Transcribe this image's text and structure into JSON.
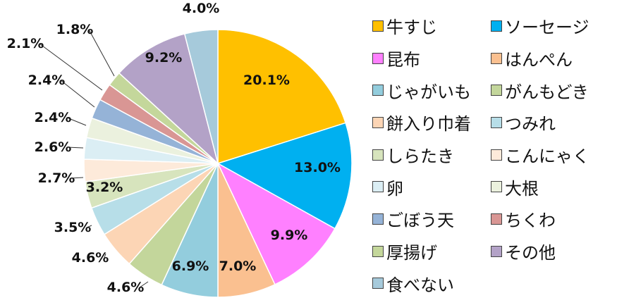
{
  "chart_data": {
    "type": "pie",
    "title": "",
    "start_angle_deg": 0,
    "direction": "clockwise",
    "slices": [
      {
        "label": "牛すじ",
        "value": 20.1,
        "value_label": "20.1%",
        "color": "#FFC000"
      },
      {
        "label": "ソーセージ",
        "value": 13.0,
        "value_label": "13.0%",
        "color": "#00B0F0"
      },
      {
        "label": "昆布",
        "value": 9.9,
        "value_label": "9.9%",
        "color": "#FF80FF"
      },
      {
        "label": "はんぺん",
        "value": 7.0,
        "value_label": "7.0%",
        "color": "#FAC090"
      },
      {
        "label": "じゃがいも",
        "value": 6.9,
        "value_label": "6.9%",
        "color": "#93CDDD"
      },
      {
        "label": "がんもどき",
        "value": 4.6,
        "value_label": "4.6%",
        "color": "#C3D69B"
      },
      {
        "label": "餅入り巾着",
        "value": 4.6,
        "value_label": "4.6%",
        "color": "#FCD5B5"
      },
      {
        "label": "つみれ",
        "value": 3.5,
        "value_label": "3.5%",
        "color": "#B7DEE8"
      },
      {
        "label": "しらたき",
        "value": 3.2,
        "value_label": "3.2%",
        "color": "#D7E4BD"
      },
      {
        "label": "こんにゃく",
        "value": 2.7,
        "value_label": "2.7%",
        "color": "#FDEADA"
      },
      {
        "label": "卵",
        "value": 2.6,
        "value_label": "2.6%",
        "color": "#DBEEF4"
      },
      {
        "label": "大根",
        "value": 2.4,
        "value_label": "2.4%",
        "color": "#EBF1DE"
      },
      {
        "label": "ごぼう天",
        "value": 2.4,
        "value_label": "2.4%",
        "color": "#95B3D7"
      },
      {
        "label": "ちくわ",
        "value": 2.1,
        "value_label": "2.1%",
        "color": "#D99694"
      },
      {
        "label": "厚揚げ",
        "value": 1.8,
        "value_label": "1.8%",
        "color": "#C4D79B"
      },
      {
        "label": "その他",
        "value": 9.2,
        "value_label": "9.2%",
        "color": "#B3A2C7"
      },
      {
        "label": "食べない",
        "value": 4.0,
        "value_label": "4.0%",
        "color": "#A6CADB"
      }
    ],
    "legend": {
      "position": "right",
      "columns": 2,
      "items": [
        "牛すじ",
        "ソーセージ",
        "昆布",
        "はんぺん",
        "じゃがいも",
        "がんもどき",
        "餅入り巾着",
        "つみれ",
        "しらたき",
        "こんにゃく",
        "卵",
        "大根",
        "ごぼう天",
        "ちくわ",
        "厚揚げ",
        "その他",
        "食べない"
      ]
    }
  }
}
